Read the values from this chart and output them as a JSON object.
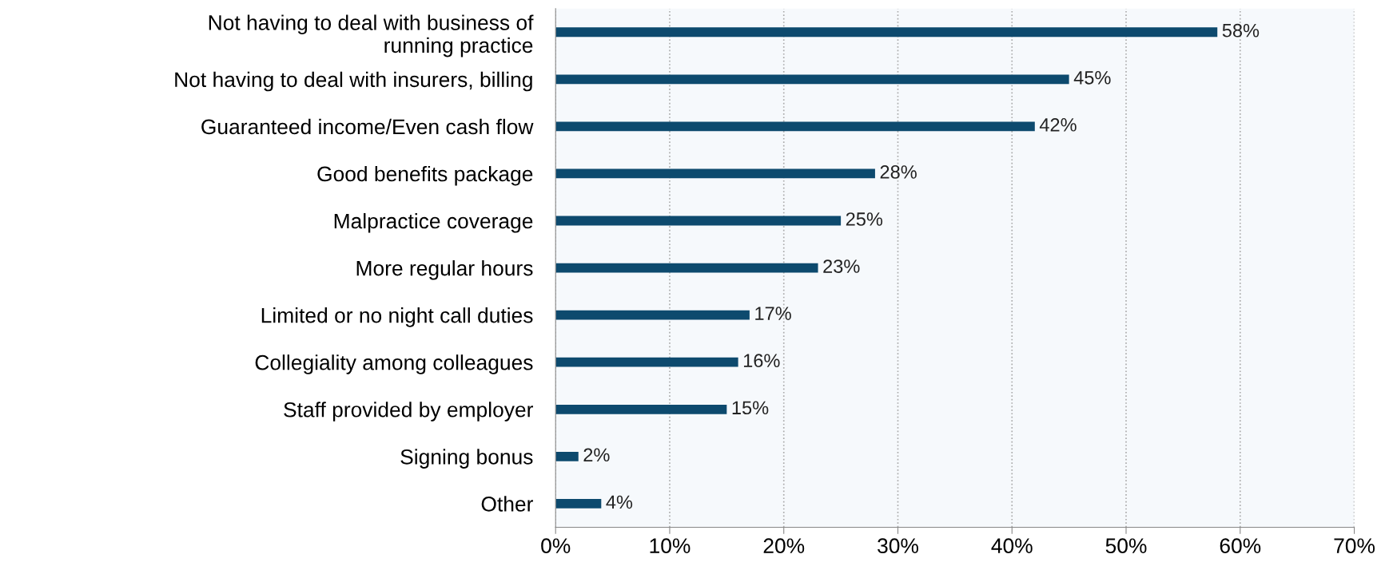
{
  "chart_data": {
    "type": "bar",
    "orientation": "horizontal",
    "categories": [
      "Not having to deal with business of running practice",
      "Not having to deal with insurers, billing",
      "Guaranteed income/Even cash flow",
      "Good benefits package",
      "Malpractice coverage",
      "More regular hours",
      "Limited or no night call duties",
      "Collegiality among colleagues",
      "Staff provided by employer",
      "Signing bonus",
      "Other"
    ],
    "values": [
      58,
      45,
      42,
      28,
      25,
      23,
      17,
      16,
      15,
      2,
      4
    ],
    "value_labels": [
      "58%",
      "45%",
      "42%",
      "28%",
      "25%",
      "23%",
      "17%",
      "16%",
      "15%",
      "2%",
      "4%"
    ],
    "color": "#0d4a6e",
    "xlim": [
      0,
      70
    ],
    "xticks": [
      {
        "value": 0,
        "label": "0%"
      },
      {
        "value": 10,
        "label": "10%"
      },
      {
        "value": 20,
        "label": "20%"
      },
      {
        "value": 30,
        "label": "30%"
      },
      {
        "value": 40,
        "label": "40%"
      },
      {
        "value": 50,
        "label": "50%"
      },
      {
        "value": 60,
        "label": "60%"
      },
      {
        "value": 70,
        "label": "70%"
      }
    ],
    "grid": "x",
    "legend": false
  }
}
